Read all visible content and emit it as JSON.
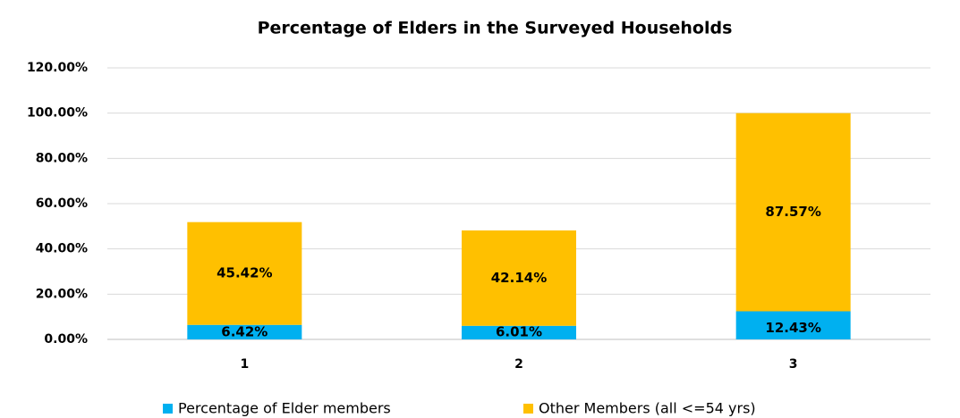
{
  "chart_data": {
    "type": "stacked_bar",
    "title": "Percentage of Elders in the Surveyed Households",
    "categories": [
      "1",
      "2",
      "3"
    ],
    "series": [
      {
        "name": "Percentage of Elder members",
        "color": "#00b0f0",
        "values": [
          6.42,
          6.01,
          12.43
        ],
        "value_labels": [
          "6.42%",
          "6.01%",
          "12.43%"
        ]
      },
      {
        "name": "Other  Members (all <=54 yrs)",
        "color": "#ffc000",
        "values": [
          45.42,
          42.14,
          87.57
        ],
        "value_labels": [
          "45.42%",
          "42.14%",
          "87.57%"
        ]
      }
    ],
    "ylim": [
      0,
      120
    ],
    "yticks": [
      {
        "value": 0,
        "label": "0.00%"
      },
      {
        "value": 20,
        "label": "20.00%"
      },
      {
        "value": 40,
        "label": "40.00%"
      },
      {
        "value": 60,
        "label": "60.00%"
      },
      {
        "value": 80,
        "label": "80.00%"
      },
      {
        "value": 100,
        "label": "100.00%"
      },
      {
        "value": 120,
        "label": "120.00%"
      }
    ],
    "grid": true,
    "legend": "bottom"
  }
}
